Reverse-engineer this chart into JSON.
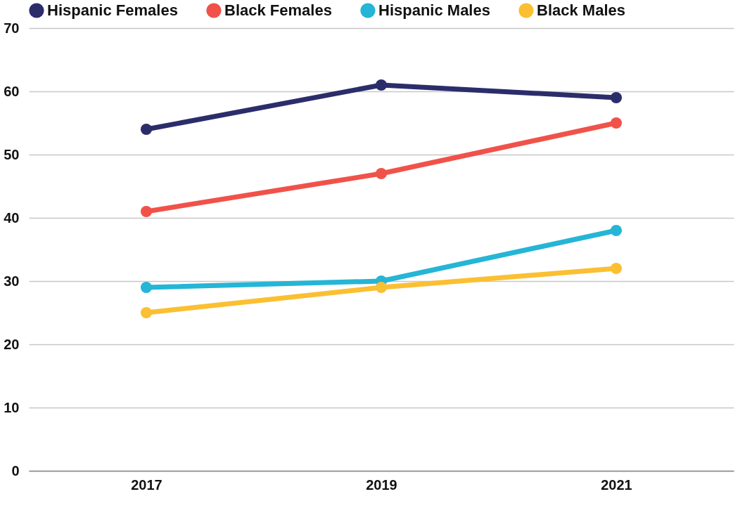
{
  "chart_data": {
    "type": "line",
    "categories": [
      "2017",
      "2019",
      "2021"
    ],
    "series": [
      {
        "name": "Hispanic Females",
        "color": "#2b2d6b",
        "values": [
          54,
          61,
          59
        ]
      },
      {
        "name": "Black Females",
        "color": "#f0524a",
        "values": [
          41,
          47,
          55
        ]
      },
      {
        "name": "Hispanic Males",
        "color": "#25b5d6",
        "values": [
          29,
          30,
          38
        ]
      },
      {
        "name": "Black Males",
        "color": "#fbbf32",
        "values": [
          25,
          29,
          32
        ]
      }
    ],
    "ylim": [
      0,
      70
    ],
    "yticks": [
      0,
      10,
      20,
      30,
      40,
      50,
      60,
      70
    ],
    "grid": "y",
    "legend": "top",
    "marker": "circle",
    "line_style": "solid"
  }
}
